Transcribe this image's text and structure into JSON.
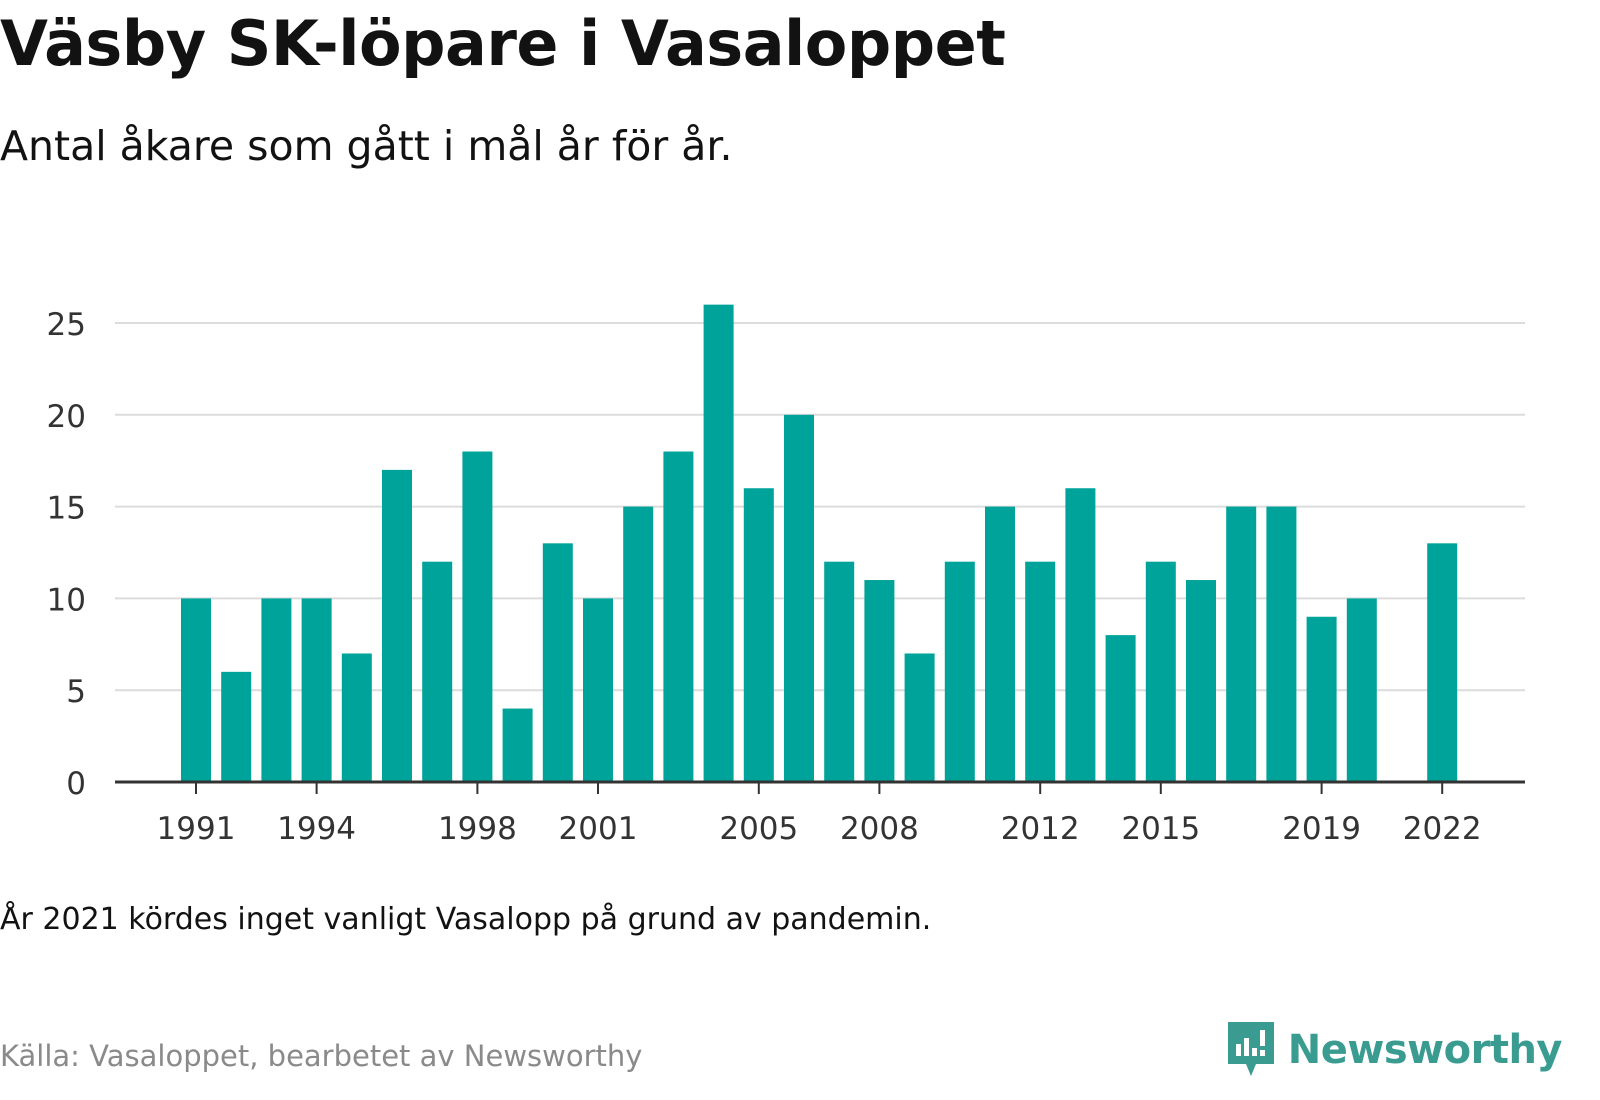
{
  "header": {
    "title": "Väsby SK-löpare i Vasaloppet",
    "subtitle": "Antal åkare som gått i mål år för år."
  },
  "footer": {
    "note": "År 2021 kördes inget vanligt Vasalopp på grund av pandemin.",
    "source": "Källa: Vasaloppet, bearbetet av Newsworthy",
    "brand": "Newsworthy"
  },
  "colors": {
    "bar": "#00a39a",
    "grid": "#dcdcdc",
    "axis": "#333333",
    "brand": "#3a9c91"
  },
  "chart_data": {
    "type": "bar",
    "categories": [
      "1991",
      "1992",
      "1993",
      "1994",
      "1995",
      "1996",
      "1997",
      "1998",
      "1999",
      "2000",
      "2001",
      "2002",
      "2003",
      "2004",
      "2005",
      "2006",
      "2007",
      "2008",
      "2009",
      "2010",
      "2011",
      "2012",
      "2013",
      "2014",
      "2015",
      "2016",
      "2017",
      "2018",
      "2019",
      "2020",
      "2021",
      "2022"
    ],
    "values": [
      10,
      6,
      10,
      10,
      7,
      17,
      12,
      18,
      4,
      13,
      10,
      15,
      18,
      26,
      16,
      20,
      12,
      11,
      7,
      12,
      15,
      12,
      16,
      8,
      12,
      11,
      15,
      15,
      9,
      10,
      null,
      13
    ],
    "x_tick_labels": [
      "1991",
      "1994",
      "1998",
      "2001",
      "2005",
      "2008",
      "2012",
      "2015",
      "2019",
      "2022"
    ],
    "y_ticks": [
      0,
      5,
      10,
      15,
      20,
      25
    ],
    "ylim": [
      0,
      26
    ],
    "grid": true,
    "legend": "none",
    "xlabel": "",
    "ylabel": ""
  }
}
